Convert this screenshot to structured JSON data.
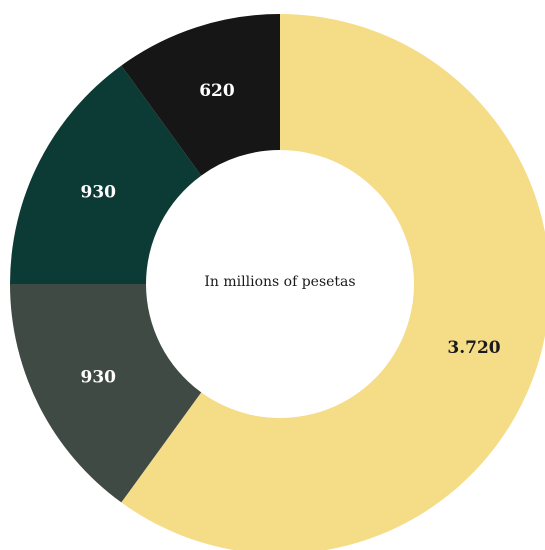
{
  "chart_data": {
    "type": "pie",
    "donut": true,
    "center_label": "In millions of pesetas",
    "slices": [
      {
        "label": "3.720",
        "value": 3720,
        "color": "#f5dc86",
        "label_color": "#1a1a1a"
      },
      {
        "label": "930",
        "value": 930,
        "color": "#3f4a45",
        "label_color": "#ffffff"
      },
      {
        "label": "930",
        "value": 930,
        "color": "#0c3a34",
        "label_color": "#ffffff"
      },
      {
        "label": "620",
        "value": 620,
        "color": "#161616",
        "label_color": "#ffffff"
      }
    ]
  }
}
